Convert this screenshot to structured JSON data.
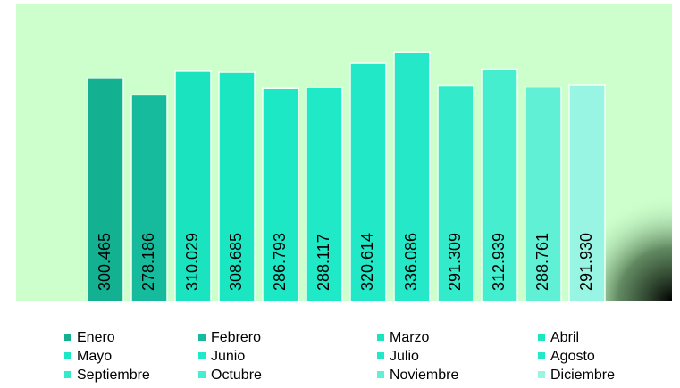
{
  "chart_data": {
    "type": "bar",
    "categories": [
      "Enero",
      "Febrero",
      "Marzo",
      "Abril",
      "Mayo",
      "Junio",
      "Julio",
      "Agosto",
      "Septiembre",
      "Octubre",
      "Noviembre",
      "Diciembre"
    ],
    "values": [
      300.465,
      278.186,
      310.029,
      308.685,
      286.793,
      288.117,
      320.614,
      336.086,
      291.309,
      312.939,
      288.761,
      291.93
    ],
    "value_labels": [
      "300.465",
      "278.186",
      "310.029",
      "308.685",
      "286.793",
      "288.117",
      "320.614",
      "336.086",
      "291.309",
      "312.939",
      "288.761",
      "291.930"
    ],
    "colors": [
      "#13b092",
      "#15bb9c",
      "#1ae3bf",
      "#1be6c2",
      "#1de8c5",
      "#1fe9c6",
      "#21e8c6",
      "#24e8c7",
      "#33ebca",
      "#45eecf",
      "#5ff0d6",
      "#98f5e3"
    ],
    "ylim": [
      0,
      400
    ],
    "legend": "bottom"
  }
}
